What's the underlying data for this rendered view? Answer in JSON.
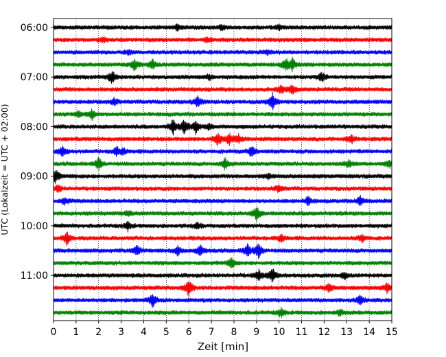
{
  "chart_data": {
    "type": "line",
    "title": "",
    "xlabel": "Zeit  [min]",
    "ylabel": "UTC (Lokalzeit = UTC + 02:00)",
    "xlim": [
      0,
      15
    ],
    "x_ticks": [
      0,
      1,
      2,
      3,
      4,
      5,
      6,
      7,
      8,
      9,
      10,
      11,
      12,
      13,
      14,
      15
    ],
    "x_tick_labels": [
      "0",
      "1",
      "2",
      "3",
      "4",
      "5",
      "6",
      "7",
      "8",
      "9",
      "10",
      "11",
      "12",
      "13",
      "14",
      "15"
    ],
    "y_tick_labels": [
      "06:00",
      "07:00",
      "08:00",
      "09:00",
      "10:00",
      "11:00"
    ],
    "grid": "vertical dotted",
    "trace_minutes": 15,
    "series_colors": [
      "#000000",
      "#ff0000",
      "#0000ff",
      "#008000"
    ],
    "traces": [
      {
        "start": "06:00",
        "events": [
          [
            5.5,
            0.7
          ],
          [
            7.5,
            0.6
          ],
          [
            10.0,
            0.5
          ]
        ]
      },
      {
        "start": "06:15",
        "events": [
          [
            2.2,
            0.5
          ],
          [
            6.8,
            0.5
          ]
        ]
      },
      {
        "start": "06:30",
        "events": [
          [
            3.3,
            0.5
          ],
          [
            9.5,
            0.5
          ]
        ]
      },
      {
        "start": "06:45",
        "events": [
          [
            3.6,
            1.4
          ],
          [
            4.4,
            1.2
          ],
          [
            10.3,
            1.5
          ],
          [
            10.6,
            1.4
          ]
        ]
      },
      {
        "start": "07:00",
        "events": [
          [
            2.6,
            1.5
          ],
          [
            6.9,
            0.6
          ],
          [
            11.9,
            1.1
          ]
        ]
      },
      {
        "start": "07:15",
        "events": [
          [
            10.1,
            1.0
          ],
          [
            10.6,
            1.0
          ]
        ]
      },
      {
        "start": "07:30",
        "events": [
          [
            2.7,
            0.8
          ],
          [
            6.4,
            1.4
          ],
          [
            9.7,
            2.0
          ]
        ]
      },
      {
        "start": "07:45",
        "events": [
          [
            1.7,
            1.2
          ],
          [
            1.1,
            0.7
          ]
        ]
      },
      {
        "start": "08:00",
        "events": [
          [
            5.3,
            1.9
          ],
          [
            5.8,
            1.6
          ],
          [
            6.3,
            1.5
          ],
          [
            6.9,
            0.8
          ]
        ]
      },
      {
        "start": "08:15",
        "events": [
          [
            7.3,
            1.5
          ],
          [
            7.8,
            1.3
          ],
          [
            8.2,
            1.0
          ],
          [
            13.2,
            1.0
          ]
        ]
      },
      {
        "start": "08:30",
        "events": [
          [
            0.4,
            1.3
          ],
          [
            2.8,
            1.0
          ],
          [
            3.1,
            0.8
          ],
          [
            8.8,
            1.3
          ]
        ]
      },
      {
        "start": "08:45",
        "events": [
          [
            2.0,
            1.4
          ],
          [
            7.6,
            1.3
          ],
          [
            13.1,
            0.8
          ],
          [
            14.9,
            0.9
          ]
        ]
      },
      {
        "start": "09:00",
        "events": [
          [
            0.1,
            1.6
          ],
          [
            9.5,
            0.6
          ]
        ]
      },
      {
        "start": "09:15",
        "events": [
          [
            0.2,
            0.9
          ],
          [
            10.0,
            0.9
          ]
        ]
      },
      {
        "start": "09:30",
        "events": [
          [
            0.5,
            0.9
          ],
          [
            11.3,
            1.0
          ],
          [
            13.6,
            1.2
          ]
        ]
      },
      {
        "start": "09:45",
        "events": [
          [
            9.0,
            1.8
          ],
          [
            3.3,
            0.6
          ]
        ]
      },
      {
        "start": "10:00",
        "events": [
          [
            3.3,
            1.0
          ],
          [
            6.4,
            0.7
          ]
        ]
      },
      {
        "start": "10:15",
        "events": [
          [
            0.6,
            1.5
          ],
          [
            10.1,
            1.0
          ],
          [
            13.7,
            0.9
          ]
        ]
      },
      {
        "start": "10:30",
        "events": [
          [
            3.7,
            1.5
          ],
          [
            5.5,
            1.0
          ],
          [
            6.5,
            1.6
          ],
          [
            8.6,
            1.6
          ],
          [
            9.1,
            1.8
          ]
        ]
      },
      {
        "start": "10:45",
        "events": [
          [
            7.9,
            1.2
          ]
        ]
      },
      {
        "start": "11:00",
        "events": [
          [
            9.1,
            1.3
          ],
          [
            9.7,
            1.7
          ],
          [
            12.9,
            0.9
          ]
        ]
      },
      {
        "start": "11:15",
        "events": [
          [
            6.0,
            2.1
          ],
          [
            12.2,
            1.0
          ],
          [
            14.8,
            1.2
          ]
        ]
      },
      {
        "start": "11:30",
        "events": [
          [
            4.4,
            1.6
          ],
          [
            13.6,
            1.3
          ]
        ]
      },
      {
        "start": "11:45",
        "events": [
          [
            10.1,
            1.0
          ],
          [
            12.7,
            0.6
          ]
        ]
      }
    ]
  }
}
